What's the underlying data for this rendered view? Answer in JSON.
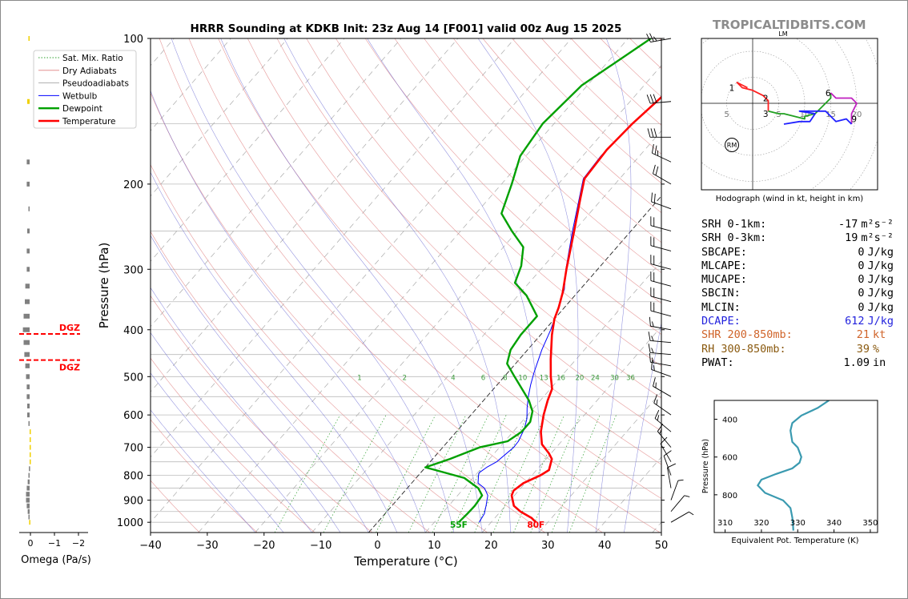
{
  "title": "HRRR Sounding at KDKB Init: 23z Aug 14 [F001] valid 00z Aug 15 2025",
  "brand": "TROPICALTIDBITS.COM",
  "colors": {
    "temperature": "#ff0000",
    "dewpoint": "#00a000",
    "wetbulb": "#0000ff",
    "thetae": "#3a9ab0",
    "dgz": "#ff0000"
  },
  "chart_data": [
    {
      "type": "line",
      "name": "skewt",
      "xlabel": "Temperature (°C)",
      "ylabel": "Pressure (hPa)",
      "xlim": [
        -40,
        50
      ],
      "ylim": [
        1050,
        100
      ],
      "yscale": "log",
      "xticks": [
        "−40",
        "−30",
        "−20",
        "−10",
        "0",
        "10",
        "20",
        "30",
        "40",
        "50"
      ],
      "yticks": [
        "100",
        "200",
        "300",
        "400",
        "500",
        "600",
        "700",
        "800",
        "900",
        "1000"
      ],
      "legend": {
        "position": "top-left",
        "entries": [
          "Sat. Mix. Ratio",
          "Dry Adiabats",
          "Pseudoadiabats",
          "Wetbulb",
          "Dewpoint",
          "Temperature"
        ]
      },
      "mixing_ratio_labels": [
        "1",
        "2",
        "4",
        "6",
        "8",
        "10",
        "13",
        "16",
        "20",
        "24",
        "30",
        "36"
      ],
      "surface_labels": {
        "dewpoint": "55F",
        "temperature": "80F"
      },
      "series": [
        {
          "name": "Temperature",
          "points": [
            [
              27.9,
              1000
            ],
            [
              26.5,
              980
            ],
            [
              23.5,
              950
            ],
            [
              21.5,
              925
            ],
            [
              19.5,
              880
            ],
            [
              19.1,
              860
            ],
            [
              19.7,
              830
            ],
            [
              21.5,
              800
            ],
            [
              22.2,
              780
            ],
            [
              21.0,
              740
            ],
            [
              19.6,
              720
            ],
            [
              17.0,
              690
            ],
            [
              14.9,
              650
            ],
            [
              12.8,
              600
            ],
            [
              11.3,
              560
            ],
            [
              10.3,
              530
            ],
            [
              8.2,
              500
            ],
            [
              5.5,
              460
            ],
            [
              2.0,
              410
            ],
            [
              0.0,
              380
            ],
            [
              -1.0,
              360
            ],
            [
              -2.6,
              335
            ],
            [
              -5.5,
              300
            ],
            [
              -10.0,
              250
            ],
            [
              -13.8,
              215
            ],
            [
              -16.2,
              195
            ],
            [
              -16.7,
              170
            ],
            [
              -16.2,
              150
            ],
            [
              -15.0,
              130
            ],
            [
              -13.0,
              115
            ],
            [
              -11.8,
              105
            ],
            [
              -11.2,
              100
            ]
          ]
        },
        {
          "name": "Dewpoint",
          "points": [
            [
              14.3,
              1000
            ],
            [
              14.5,
              960
            ],
            [
              14.6,
              925
            ],
            [
              14.3,
              880
            ],
            [
              12.5,
              850
            ],
            [
              8.5,
              810
            ],
            [
              2.2,
              780
            ],
            [
              0.0,
              770
            ],
            [
              3.0,
              740
            ],
            [
              6.5,
              700
            ],
            [
              10.5,
              680
            ],
            [
              11.5,
              650
            ],
            [
              11.5,
              620
            ],
            [
              10.3,
              590
            ],
            [
              8.0,
              560
            ],
            [
              5.0,
              530
            ],
            [
              1.8,
              500
            ],
            [
              -1.5,
              470
            ],
            [
              -3.0,
              440
            ],
            [
              -3.5,
              410
            ],
            [
              -3.5,
              375
            ],
            [
              -8.5,
              340
            ],
            [
              -12.5,
              320
            ],
            [
              -14.0,
              295
            ],
            [
              -16.5,
              270
            ],
            [
              -21.0,
              250
            ],
            [
              -25.5,
              230
            ],
            [
              -28.2,
              200
            ],
            [
              -31.0,
              175
            ],
            [
              -32.0,
              150
            ],
            [
              -31.0,
              125
            ],
            [
              -26.0,
              100
            ]
          ]
        },
        {
          "name": "Wetbulb",
          "points": [
            [
              17.9,
              1000
            ],
            [
              17.5,
              960
            ],
            [
              16.6,
              925
            ],
            [
              15.3,
              880
            ],
            [
              13.6,
              850
            ],
            [
              11.7,
              830
            ],
            [
              10.6,
              800
            ],
            [
              10.3,
              790
            ],
            [
              10.8,
              770
            ],
            [
              11.7,
              750
            ],
            [
              12.5,
              700
            ],
            [
              12.4,
              680
            ],
            [
              11.5,
              640
            ],
            [
              10.4,
              610
            ],
            [
              8.8,
              580
            ],
            [
              7.3,
              550
            ],
            [
              5.9,
              520
            ],
            [
              4.6,
              490
            ],
            [
              2.5,
              440
            ],
            [
              1.0,
              400
            ],
            [
              -0.5,
              370
            ],
            [
              -2.8,
              330
            ],
            [
              -5.6,
              300
            ],
            [
              -10.3,
              250
            ],
            [
              -14.0,
              215
            ],
            [
              -16.4,
              195
            ],
            [
              -16.8,
              175
            ],
            [
              -16.5,
              160
            ]
          ]
        }
      ]
    },
    {
      "type": "line",
      "name": "hodograph",
      "title": "LM",
      "xlabel": "Hodograph (wind in kt, height in km)",
      "ring_labels": [
        "5",
        "10",
        "15",
        "20"
      ],
      "left_ring_label": "5",
      "storm_motion_label": "RM",
      "series": [
        {
          "name": "0-1 km",
          "color": "#ff2020",
          "points": [
            [
              -1,
              3
            ],
            [
              -3,
              4
            ],
            [
              -2,
              3
            ],
            [
              0,
              2.5
            ]
          ]
        },
        {
          "name": "1-3 km",
          "color": "#ff2020",
          "points": [
            [
              0,
              2.5
            ],
            [
              2,
              1.5
            ],
            [
              3,
              0.5
            ],
            [
              3,
              -1.5
            ]
          ]
        },
        {
          "name": "3-6 km",
          "color": "#20a020",
          "points": [
            [
              3,
              -1.5
            ],
            [
              5,
              -2
            ],
            [
              6,
              -2
            ],
            [
              10,
              -3
            ],
            [
              10,
              -2.5
            ],
            [
              12,
              -2
            ],
            [
              14,
              0
            ],
            [
              15,
              1
            ],
            [
              15,
              2
            ]
          ]
        },
        {
          "name": "6-9 km",
          "color": "#c020c0",
          "points": [
            [
              15,
              2
            ],
            [
              16,
              1
            ],
            [
              19,
              1
            ],
            [
              20,
              0
            ],
            [
              19,
              -2
            ],
            [
              19,
              -3
            ],
            [
              19,
              -4
            ]
          ]
        },
        {
          "name": "9+ km",
          "color": "#2020ff",
          "points": [
            [
              19,
              -4
            ],
            [
              18,
              -3
            ],
            [
              16,
              -3.5
            ],
            [
              14,
              -1.5
            ],
            [
              10,
              -1.5
            ],
            [
              9,
              -1.5
            ],
            [
              12,
              -2
            ],
            [
              11,
              -3.5
            ],
            [
              9,
              -3.5
            ],
            [
              6,
              -4
            ]
          ]
        }
      ],
      "height_labels": [
        {
          "label": "1",
          "u": -4,
          "v": 3
        },
        {
          "label": "2",
          "u": 2.5,
          "v": 1
        },
        {
          "label": "3",
          "u": 2.5,
          "v": -2
        },
        {
          "label": "6",
          "u": 14.5,
          "v": 2
        },
        {
          "label": "9",
          "u": 19.5,
          "v": -3
        }
      ],
      "storm_motion": [
        -4,
        -8
      ]
    },
    {
      "type": "line",
      "name": "theta-e",
      "xlabel": "Equivalent Pot. Temperature (K)",
      "ylabel": "Pressure (hPa)",
      "xlim": [
        307,
        352
      ],
      "ylim": [
        1000,
        300
      ],
      "xticks": [
        "310",
        "320",
        "330",
        "340",
        "350"
      ],
      "yticks": [
        "400",
        "600",
        "800"
      ],
      "points": [
        [
          338.6,
          300
        ],
        [
          335.5,
          340
        ],
        [
          331.0,
          380
        ],
        [
          328.5,
          420
        ],
        [
          328.0,
          460
        ],
        [
          328.5,
          520
        ],
        [
          330.0,
          550
        ],
        [
          331.0,
          600
        ],
        [
          330.5,
          630
        ],
        [
          328.5,
          660
        ],
        [
          324.0,
          690
        ],
        [
          320.0,
          720
        ],
        [
          319.0,
          750
        ],
        [
          321.0,
          790
        ],
        [
          326.0,
          830
        ],
        [
          328.0,
          870
        ],
        [
          328.5,
          920
        ],
        [
          328.7,
          960
        ],
        [
          328.8,
          990
        ]
      ]
    },
    {
      "type": "bar",
      "name": "omega",
      "xlabel": "Omega (Pa/s)",
      "xticks": [
        "0",
        "−1",
        "−2"
      ],
      "dgz": {
        "label": "DGZ",
        "top_p": 408,
        "bottom_p": 462
      },
      "levels": [
        {
          "p": 100,
          "w": 0.05,
          "c": "#f0d000"
        },
        {
          "p": 135,
          "w": 0.1,
          "c": "#f0d000"
        },
        {
          "p": 180,
          "w": 0.12,
          "c": "#808080"
        },
        {
          "p": 200,
          "w": 0.12,
          "c": "#808080"
        },
        {
          "p": 225,
          "w": 0.05,
          "c": "#808080"
        },
        {
          "p": 250,
          "w": 0.1,
          "c": "#808080"
        },
        {
          "p": 275,
          "w": 0.12,
          "c": "#808080"
        },
        {
          "p": 300,
          "w": 0.12,
          "c": "#808080"
        },
        {
          "p": 325,
          "w": 0.18,
          "c": "#808080"
        },
        {
          "p": 350,
          "w": 0.2,
          "c": "#808080"
        },
        {
          "p": 375,
          "w": 0.25,
          "c": "#808080"
        },
        {
          "p": 400,
          "w": 0.28,
          "c": "#808080"
        },
        {
          "p": 425,
          "w": 0.25,
          "c": "#808080"
        },
        {
          "p": 450,
          "w": 0.22,
          "c": "#808080"
        },
        {
          "p": 475,
          "w": 0.18,
          "c": "#808080"
        },
        {
          "p": 500,
          "w": 0.15,
          "c": "#808080"
        },
        {
          "p": 525,
          "w": 0.12,
          "c": "#808080"
        },
        {
          "p": 550,
          "w": 0.12,
          "c": "#808080"
        },
        {
          "p": 575,
          "w": 0.1,
          "c": "#808080"
        },
        {
          "p": 600,
          "w": 0.1,
          "c": "#808080"
        },
        {
          "p": 625,
          "w": 0.05,
          "c": "#808080"
        },
        {
          "p": 650,
          "w": -0.02,
          "c": "#f0d000"
        },
        {
          "p": 675,
          "w": -0.02,
          "c": "#f0d000"
        },
        {
          "p": 700,
          "w": -0.02,
          "c": "#f0d000"
        },
        {
          "p": 725,
          "w": -0.02,
          "c": "#f0d000"
        },
        {
          "p": 750,
          "w": -0.02,
          "c": "#f0d000"
        },
        {
          "p": 775,
          "w": 0.03,
          "c": "#808080"
        },
        {
          "p": 800,
          "w": 0.05,
          "c": "#808080"
        },
        {
          "p": 825,
          "w": 0.08,
          "c": "#808080"
        },
        {
          "p": 850,
          "w": 0.12,
          "c": "#808080"
        },
        {
          "p": 875,
          "w": 0.15,
          "c": "#808080"
        },
        {
          "p": 900,
          "w": 0.15,
          "c": "#808080"
        },
        {
          "p": 925,
          "w": 0.12,
          "c": "#808080"
        },
        {
          "p": 950,
          "w": 0.08,
          "c": "#808080"
        },
        {
          "p": 975,
          "w": 0.05,
          "c": "#808080"
        },
        {
          "p": 1000,
          "w": 0.02,
          "c": "#f0d000"
        }
      ]
    },
    {
      "type": "scatter",
      "name": "wind-barbs",
      "levels": [
        {
          "p": 100,
          "kt": 25,
          "dir": 260
        },
        {
          "p": 135,
          "kt": 30,
          "dir": 265
        },
        {
          "p": 160,
          "kt": 30,
          "dir": 270
        },
        {
          "p": 180,
          "kt": 25,
          "dir": 295
        },
        {
          "p": 200,
          "kt": 20,
          "dir": 300
        },
        {
          "p": 225,
          "kt": 20,
          "dir": 290
        },
        {
          "p": 250,
          "kt": 20,
          "dir": 285
        },
        {
          "p": 275,
          "kt": 20,
          "dir": 285
        },
        {
          "p": 300,
          "kt": 20,
          "dir": 285
        },
        {
          "p": 325,
          "kt": 20,
          "dir": 285
        },
        {
          "p": 350,
          "kt": 20,
          "dir": 285
        },
        {
          "p": 375,
          "kt": 20,
          "dir": 285
        },
        {
          "p": 400,
          "kt": 15,
          "dir": 280
        },
        {
          "p": 425,
          "kt": 15,
          "dir": 275
        },
        {
          "p": 450,
          "kt": 15,
          "dir": 275
        },
        {
          "p": 475,
          "kt": 15,
          "dir": 280
        },
        {
          "p": 500,
          "kt": 15,
          "dir": 290
        },
        {
          "p": 550,
          "kt": 15,
          "dir": 300
        },
        {
          "p": 600,
          "kt": 15,
          "dir": 305
        },
        {
          "p": 650,
          "kt": 15,
          "dir": 310
        },
        {
          "p": 700,
          "kt": 15,
          "dir": 320
        },
        {
          "p": 750,
          "kt": 10,
          "dir": 330
        },
        {
          "p": 800,
          "kt": 10,
          "dir": 340
        },
        {
          "p": 850,
          "kt": 10,
          "dir": 350
        },
        {
          "p": 900,
          "kt": 5,
          "dir": 20
        },
        {
          "p": 950,
          "kt": 5,
          "dir": 40
        },
        {
          "p": 1000,
          "kt": 5,
          "dir": 60
        }
      ]
    }
  ],
  "stats": [
    {
      "label": "SRH 0-1km:",
      "value": "-17",
      "unit": "m²s⁻²",
      "color": "#000000"
    },
    {
      "label": "SRH 0-3km:",
      "value": "19",
      "unit": "m²s⁻²",
      "color": "#000000"
    },
    {
      "label": "SBCAPE:",
      "value": "0",
      "unit": "J/kg",
      "color": "#000000"
    },
    {
      "label": "MLCAPE:",
      "value": "0",
      "unit": "J/kg",
      "color": "#000000"
    },
    {
      "label": "MUCAPE:",
      "value": "0",
      "unit": "J/kg",
      "color": "#000000"
    },
    {
      "label": "SBCIN:",
      "value": "0",
      "unit": "J/kg",
      "color": "#000000"
    },
    {
      "label": "MLCIN:",
      "value": "0",
      "unit": "J/kg",
      "color": "#000000"
    },
    {
      "label": "DCAPE:",
      "value": "612",
      "unit": "J/kg",
      "color": "#2222dd"
    },
    {
      "label": "SHR 200-850mb:",
      "value": "21",
      "unit": "kt",
      "color": "#d0642a"
    },
    {
      "label": "RH 300-850mb:",
      "value": "39",
      "unit": "%",
      "color": "#8a5a10"
    },
    {
      "label": "PWAT:",
      "value": "1.09",
      "unit": "in",
      "color": "#000000"
    }
  ]
}
